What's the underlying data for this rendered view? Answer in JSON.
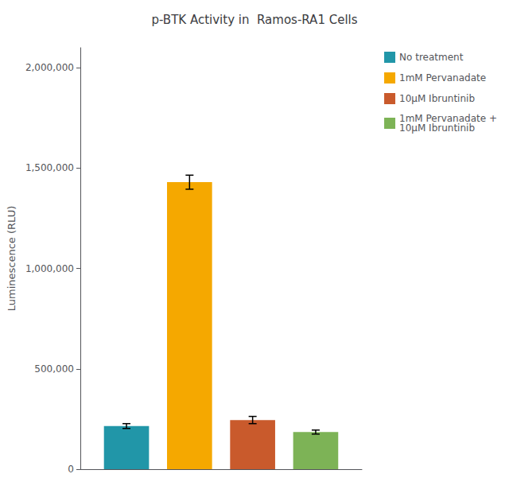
{
  "chart_data": {
    "type": "bar",
    "title": "p-BTK Activity in  Ramos-RA1 Cells",
    "ylabel": "Luminescence (RLU)",
    "categories": [
      null
    ],
    "series": [
      {
        "name": "No treatment",
        "color": "#2196A8",
        "values": [
          215000
        ],
        "errors": [
          12000
        ]
      },
      {
        "name": "1mM Pervanadate",
        "color": "#F5A800",
        "values": [
          1430000
        ],
        "errors": [
          35000
        ]
      },
      {
        "name": "10μM Ibruntinib",
        "color": "#C95A2C",
        "values": [
          245000
        ],
        "errors": [
          18000
        ]
      },
      {
        "name": "1mM Pervanadate +\n10μM Ibruntinib",
        "color": "#7DB356",
        "values": [
          185000
        ],
        "errors": [
          10000
        ]
      }
    ],
    "ylim": [
      0,
      2100000
    ],
    "yticks": [
      0,
      {
        "value": 500000,
        "label": "500,000"
      },
      {
        "value": 1000000,
        "label": "1,000,000"
      },
      {
        "value": 1500000,
        "label": "1,500,000"
      },
      {
        "value": 2000000,
        "label": "2,000,000"
      }
    ],
    "grid": false,
    "legend": "upper right",
    "tick_labels": "y"
  }
}
